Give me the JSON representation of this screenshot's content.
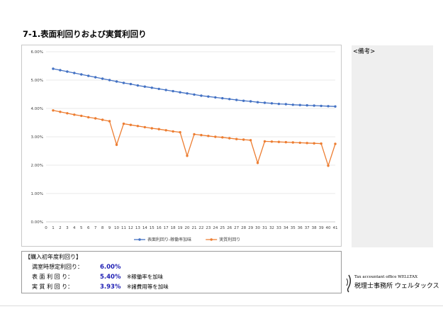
{
  "page": {
    "title": "7-1.表面利回りおよび実質利回り"
  },
  "notes": {
    "label": "<備考>"
  },
  "info": {
    "header": "【購入初年度利回り】",
    "rows": [
      {
        "label": "満室時想定利回り：",
        "value": "6.00%",
        "note": ""
      },
      {
        "label": "表 面 利 回 り：",
        "value": "5.40%",
        "note": "※稼働率を加味"
      },
      {
        "label": "実 質 利 回 り：",
        "value": "3.93%",
        "note": "※諸費用等を加味"
      }
    ]
  },
  "logo": {
    "en": "Tax accountant office WELLTAX",
    "jp": "税理士事務所 ウェルタックス"
  },
  "chart_data": {
    "type": "line",
    "title": "",
    "xlabel": "",
    "ylabel": "",
    "x": [
      1,
      2,
      3,
      4,
      5,
      6,
      7,
      8,
      9,
      10,
      11,
      12,
      13,
      14,
      15,
      16,
      17,
      18,
      19,
      20,
      21,
      22,
      23,
      24,
      25,
      26,
      27,
      28,
      29,
      30,
      31,
      32,
      33,
      34,
      35,
      36,
      37,
      38,
      39,
      40,
      41
    ],
    "xticks": [
      "0",
      "1",
      "2",
      "3",
      "4",
      "5",
      "6",
      "7",
      "8",
      "9",
      "10",
      "11",
      "12",
      "13",
      "14",
      "15",
      "16",
      "17",
      "18",
      "19",
      "20",
      "21",
      "22",
      "23",
      "24",
      "25",
      "26",
      "27",
      "28",
      "29",
      "30",
      "31",
      "32",
      "33",
      "34",
      "35",
      "36",
      "37",
      "38",
      "39",
      "40",
      "41"
    ],
    "yticks": [
      "0.00%",
      "1.00%",
      "2.00%",
      "3.00%",
      "4.00%",
      "5.00%",
      "6.00%"
    ],
    "xlim": [
      0,
      41
    ],
    "ylim": [
      0,
      6
    ],
    "grid": true,
    "legend": "bottom",
    "series": [
      {
        "name": "表面利回り-稼働率加味",
        "color": "#4472c4",
        "values": [
          5.4,
          5.35,
          5.3,
          5.25,
          5.2,
          5.15,
          5.1,
          5.05,
          5.0,
          4.95,
          4.9,
          4.86,
          4.81,
          4.77,
          4.73,
          4.69,
          4.65,
          4.61,
          4.57,
          4.53,
          4.49,
          4.45,
          4.42,
          4.39,
          4.36,
          4.33,
          4.3,
          4.27,
          4.25,
          4.22,
          4.2,
          4.18,
          4.16,
          4.15,
          4.13,
          4.12,
          4.11,
          4.1,
          4.09,
          4.08,
          4.07
        ]
      },
      {
        "name": "実質利回り",
        "color": "#ed7d31",
        "values": [
          3.93,
          3.88,
          3.83,
          3.78,
          3.74,
          3.69,
          3.65,
          3.6,
          3.55,
          2.72,
          3.46,
          3.42,
          3.38,
          3.34,
          3.3,
          3.27,
          3.23,
          3.19,
          3.16,
          2.33,
          3.09,
          3.06,
          3.03,
          3.0,
          2.98,
          2.95,
          2.92,
          2.9,
          2.88,
          2.08,
          2.84,
          2.83,
          2.82,
          2.81,
          2.8,
          2.79,
          2.78,
          2.77,
          2.76,
          1.98,
          2.75
        ]
      }
    ]
  }
}
